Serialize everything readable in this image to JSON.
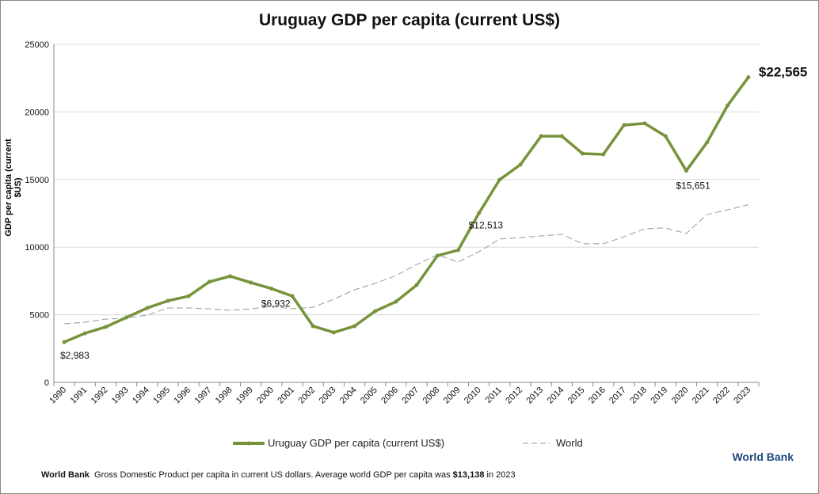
{
  "chart_data": {
    "type": "line",
    "title": "Uruguay GDP per capita (current US$)",
    "ylabel": "GDP per capita (current $US)",
    "xlabel": "",
    "ylim": [
      0,
      25000
    ],
    "yticks": [
      0,
      5000,
      10000,
      15000,
      20000,
      25000
    ],
    "grid": true,
    "legend_position": "bottom",
    "categories": [
      "1990",
      "1991",
      "1992",
      "1993",
      "1994",
      "1995",
      "1996",
      "1997",
      "1998",
      "1999",
      "2000",
      "2001",
      "2002",
      "2003",
      "2004",
      "2005",
      "2006",
      "2007",
      "2008",
      "2009",
      "2010",
      "2011",
      "2012",
      "2013",
      "2014",
      "2015",
      "2016",
      "2017",
      "2018",
      "2019",
      "2020",
      "2021",
      "2022",
      "2023"
    ],
    "series": [
      {
        "name": "Uruguay GDP per capita (current US$)",
        "color": "#77933c",
        "style": "solid-markers",
        "values": [
          2983,
          3630,
          4100,
          4800,
          5500,
          6030,
          6380,
          7440,
          7850,
          7380,
          6932,
          6380,
          4160,
          3690,
          4160,
          5270,
          5970,
          7200,
          9370,
          9780,
          12513,
          14990,
          16100,
          18210,
          18210,
          16920,
          16860,
          19030,
          19150,
          18210,
          15651,
          17740,
          20490,
          22565
        ]
      },
      {
        "name": "World",
        "color": "#999999",
        "style": "dashed",
        "values": [
          4330,
          4450,
          4680,
          4740,
          4980,
          5500,
          5500,
          5440,
          5330,
          5440,
          5620,
          5440,
          5560,
          6150,
          6850,
          7320,
          7900,
          8720,
          9430,
          8900,
          9660,
          10600,
          10710,
          10830,
          10950,
          10250,
          10250,
          10770,
          11360,
          11420,
          11010,
          12410,
          12760,
          13138
        ]
      }
    ],
    "annotations": [
      {
        "year": "1990",
        "text": "$2,983"
      },
      {
        "year": "2000",
        "text": "$6,932"
      },
      {
        "year": "2010",
        "text": "$12,513"
      },
      {
        "year": "2020",
        "text": "$15,651"
      },
      {
        "year": "2023",
        "text": "$22,565"
      }
    ]
  },
  "brand": "World Bank",
  "footer": {
    "source": "World Bank",
    "text": "Gross Domestic Product per capita in current US dollars.  Average world GDP per capita was ",
    "highlight": "$13,138",
    "suffix": " in 2023"
  }
}
